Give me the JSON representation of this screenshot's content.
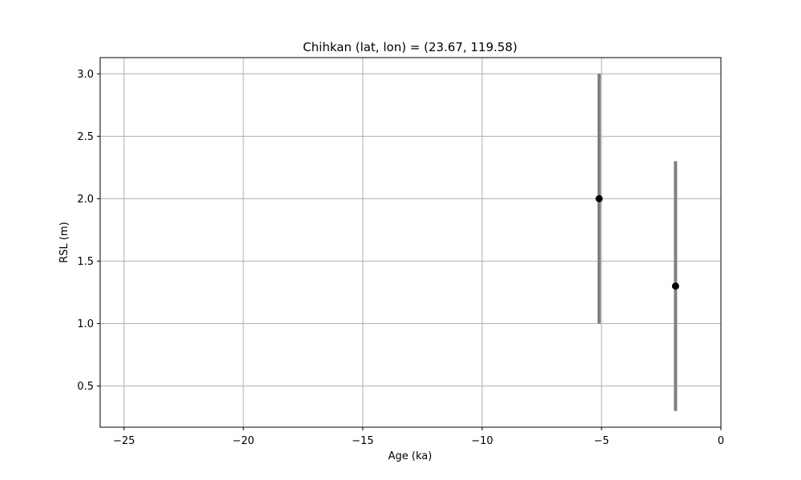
{
  "chart_data": {
    "type": "scatter",
    "title": "Chihkan (lat, lon) = (23.67, 119.58)",
    "xlabel": "Age (ka)",
    "ylabel": "RSL (m)",
    "xlim": [
      -26,
      0
    ],
    "ylim": [
      0.17,
      3.13
    ],
    "xticks": [
      -25,
      -20,
      -15,
      -10,
      -5,
      0
    ],
    "xtick_labels": [
      "−25",
      "−20",
      "−15",
      "−10",
      "−5",
      "0"
    ],
    "yticks": [
      0.5,
      1.0,
      1.5,
      2.0,
      2.5,
      3.0
    ],
    "ytick_labels": [
      "0.5",
      "1.0",
      "1.5",
      "2.0",
      "2.5",
      "3.0"
    ],
    "grid": true,
    "points": [
      {
        "x": -5.1,
        "y": 2.0,
        "y_err_low": 1.0,
        "y_err_high": 3.0
      },
      {
        "x": -1.9,
        "y": 1.3,
        "y_err_low": 0.3,
        "y_err_high": 2.3
      }
    ],
    "colors": {
      "marker": "#000000",
      "errorbar": "#808080",
      "grid": "#b0b0b0"
    }
  }
}
